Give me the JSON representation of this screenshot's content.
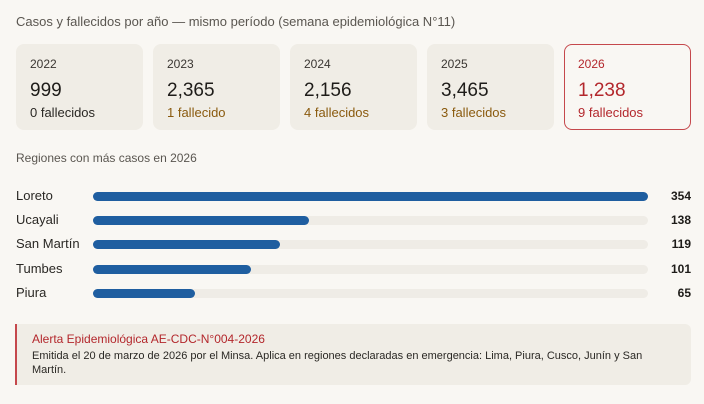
{
  "header": {
    "title": "Casos y fallecidos por año — mismo período (semana epidemiológica N°11)"
  },
  "cards": [
    {
      "year": "2022",
      "cases": "999",
      "deaths": "0 fallecidos",
      "deaths_color": "#2a2824",
      "highlight": false
    },
    {
      "year": "2023",
      "cases": "2,365",
      "deaths": "1 fallecido",
      "deaths_color": "#8a5a0e",
      "highlight": false
    },
    {
      "year": "2024",
      "cases": "2,156",
      "deaths": "4 fallecidos",
      "deaths_color": "#8a5a0e",
      "highlight": false
    },
    {
      "year": "2025",
      "cases": "3,465",
      "deaths": "3 fallecidos",
      "deaths_color": "#8a5a0e",
      "highlight": false
    },
    {
      "year": "2026",
      "cases": "1,238",
      "deaths": "9 fallecidos",
      "deaths_color": "#b3272c",
      "highlight": true
    }
  ],
  "regions": {
    "title": "Regiones con más casos en 2026",
    "bar_color": "#1f5ea0",
    "max": 354,
    "items": [
      {
        "label": "Loreto",
        "value": 354,
        "display": "354"
      },
      {
        "label": "Ucayali",
        "value": 138,
        "display": "138"
      },
      {
        "label": "San Martín",
        "value": 119,
        "display": "119"
      },
      {
        "label": "Tumbes",
        "value": 101,
        "display": "101"
      },
      {
        "label": "Piura",
        "value": 65,
        "display": "65"
      }
    ]
  },
  "alert": {
    "title": "Alerta Epidemiológica AE-CDC-N°004-2026",
    "body": "Emitida el 20 de marzo de 2026 por el Minsa. Aplica en regiones declaradas en emergencia: Lima, Piura, Cusco, Junín y San Martín.",
    "accent_color": "#c5484c"
  }
}
